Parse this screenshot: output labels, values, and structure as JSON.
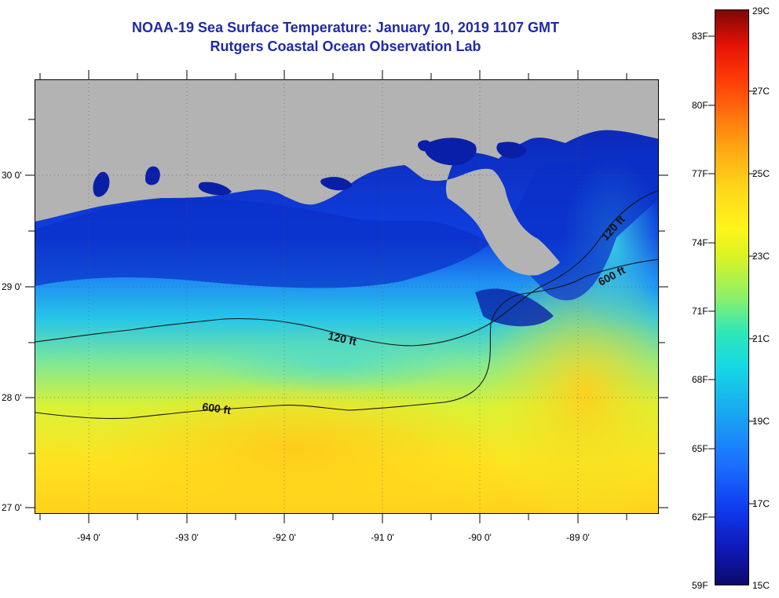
{
  "titles": {
    "line1": "NOAA-19 Sea Surface Temperature:  January 10, 2019 1107 GMT",
    "line2": "Rutgers Coastal Ocean Observation Lab"
  },
  "map": {
    "lat_labels": [
      "30 0'",
      "29 0'",
      "28 0'",
      "27 0'"
    ],
    "lon_labels": [
      "-94 0'",
      "-93 0'",
      "-92 0'",
      "-91 0'",
      "-90 0'",
      "-89 0'"
    ],
    "contour_labels": [
      "120 ft",
      "600 ft",
      "120 ft",
      "600 ft"
    ],
    "land_color": "#b3b3b3",
    "coast_water_color": "#0a1fa8"
  },
  "colorbar": {
    "fahrenheit_labels": [
      "83F",
      "80F",
      "77F",
      "74F",
      "71F",
      "68F",
      "65F",
      "62F",
      "59F"
    ],
    "celsius_labels": [
      "29C",
      "27C",
      "25C",
      "23C",
      "21C",
      "19C",
      "17C",
      "15C"
    ],
    "min_color": "#0c0a6b",
    "max_color": "#7d0707"
  }
}
